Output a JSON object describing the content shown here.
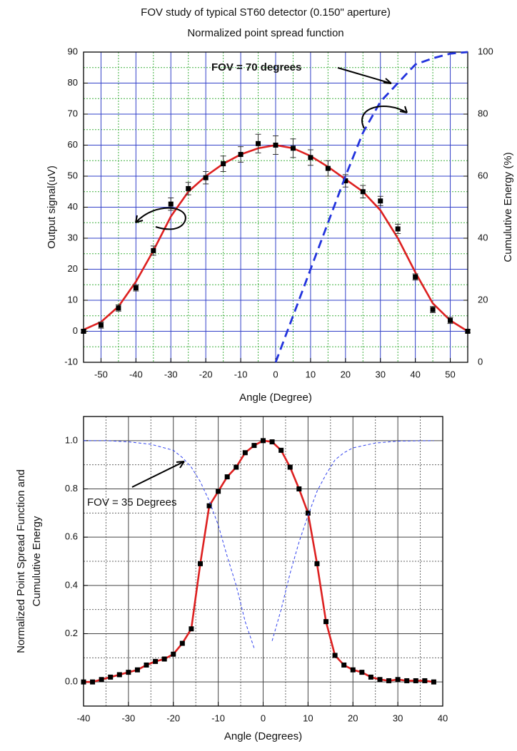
{
  "chart_data": [
    {
      "type": "line",
      "title": "FOV study of typical ST60 detector (0.150\" aperture)",
      "subtitle": "Normalized point spread function",
      "xlabel": "Angle (Degree)",
      "ylabel": [
        "Output signal(uV)"
      ],
      "y2label": "Cumulutive Energy (%)",
      "annotation": "FOV = 70 degrees",
      "xlim": [
        -55,
        55
      ],
      "xticks": [
        -50,
        -40,
        -30,
        -20,
        -10,
        0,
        10,
        20,
        30,
        40,
        50
      ],
      "xminor": [
        -45,
        -35,
        -25,
        -15,
        -5,
        5,
        15,
        25,
        35,
        45
      ],
      "ylim": [
        -10,
        90
      ],
      "yticks": [
        -10,
        0,
        10,
        20,
        30,
        40,
        50,
        60,
        70,
        80,
        90
      ],
      "yminor": [
        -5,
        5,
        15,
        25,
        35,
        45,
        55,
        65,
        75,
        85
      ],
      "y2lim": [
        0,
        100
      ],
      "y2ticks": [
        0,
        20,
        40,
        60,
        80,
        100
      ],
      "grid": true,
      "grid_color": "#3240c8",
      "minor_grid_color": "#40b040",
      "series": [
        {
          "style": "line",
          "color": "#dd2020",
          "x": [
            -55,
            -50,
            -45,
            -40,
            -35,
            -30,
            -25,
            -20,
            -15,
            -10,
            -5,
            0,
            5,
            10,
            15,
            20,
            25,
            30,
            35,
            40,
            45,
            50,
            55
          ],
          "values": [
            0.5,
            3,
            8,
            16,
            26,
            37,
            45,
            50,
            54,
            57,
            59,
            60,
            59,
            56.5,
            53,
            49,
            45,
            39,
            30,
            19,
            9,
            3.5,
            0
          ]
        },
        {
          "style": "markers",
          "color": "#000000",
          "x": [
            -55,
            -50,
            -45,
            -40,
            -35,
            -30,
            -25,
            -20,
            -15,
            -10,
            -5,
            0,
            5,
            10,
            15,
            20,
            25,
            30,
            35,
            40,
            45,
            50,
            55
          ],
          "values": [
            0,
            2,
            7.5,
            14,
            26,
            41,
            46,
            49.5,
            54,
            57,
            60.5,
            60,
            59,
            56,
            52.5,
            48.5,
            45,
            42,
            33,
            17.5,
            7,
            3.5,
            0
          ],
          "errors": [
            0.5,
            1,
            1,
            1,
            1.5,
            2,
            2,
            2,
            2.5,
            2.5,
            3,
            3,
            3,
            2.5,
            2.5,
            2,
            2,
            1.5,
            1.5,
            1,
            1,
            1,
            0.5
          ]
        },
        {
          "style": "dashed",
          "color": "#2233dd",
          "axis": "y2",
          "x": [
            0,
            5,
            10,
            15,
            20,
            25,
            30,
            35,
            40,
            45,
            50,
            55
          ],
          "values": [
            0,
            15,
            30,
            45,
            60,
            74,
            84,
            90,
            96,
            98,
            99.5,
            100
          ]
        }
      ]
    },
    {
      "type": "line",
      "xlabel": "Angle (Degrees)",
      "ylabel": [
        "Normalized Point Spread Function and",
        "Cumulutive Energy"
      ],
      "annotation": "FOV = 35 Degrees",
      "xlim": [
        -40,
        40
      ],
      "xticks": [
        -40,
        -30,
        -20,
        -10,
        0,
        10,
        20,
        30,
        40
      ],
      "xminor": [
        -35,
        -25,
        -15,
        -5,
        5,
        15,
        25,
        35
      ],
      "ylim": [
        -0.1,
        1.1
      ],
      "yticks": [
        {
          "value": 0,
          "label": "0.0"
        },
        0.2,
        0.4,
        0.6,
        0.8,
        {
          "value": 1,
          "label": "1.0"
        }
      ],
      "yminor": [
        0.1,
        0.3,
        0.5,
        0.7,
        0.9
      ],
      "grid": true,
      "grid_color": "#444444",
      "minor_grid_color": "#666666",
      "series": [
        {
          "style": "line",
          "color": "#dd2020",
          "x": [
            -40,
            -38,
            -36,
            -34,
            -32,
            -30,
            -28,
            -26,
            -24,
            -22,
            -20,
            -18,
            -16,
            -14,
            -12,
            -10,
            -8,
            -6,
            -4,
            -2,
            0,
            2,
            4,
            6,
            8,
            10,
            12,
            14,
            16,
            18,
            20,
            22,
            24,
            26,
            28,
            30,
            32,
            34,
            36,
            38
          ],
          "values": [
            0,
            0,
            0.01,
            0.02,
            0.03,
            0.04,
            0.05,
            0.07,
            0.085,
            0.095,
            0.115,
            0.16,
            0.22,
            0.49,
            0.73,
            0.79,
            0.85,
            0.89,
            0.95,
            0.98,
            1,
            0.995,
            0.96,
            0.89,
            0.8,
            0.7,
            0.49,
            0.25,
            0.11,
            0.07,
            0.05,
            0.04,
            0.02,
            0.01,
            0.005,
            0.01,
            0.005,
            0.005,
            0.005,
            0
          ]
        },
        {
          "style": "markers",
          "color": "#000000",
          "x": [
            -40,
            -38,
            -36,
            -34,
            -32,
            -30,
            -28,
            -26,
            -24,
            -22,
            -20,
            -18,
            -16,
            -14,
            -12,
            -10,
            -8,
            -6,
            -4,
            -2,
            0,
            2,
            4,
            6,
            8,
            10,
            12,
            14,
            16,
            18,
            20,
            22,
            24,
            26,
            28,
            30,
            32,
            34,
            36,
            38
          ],
          "values": [
            0,
            0,
            0.01,
            0.02,
            0.03,
            0.04,
            0.05,
            0.07,
            0.085,
            0.095,
            0.115,
            0.16,
            0.22,
            0.49,
            0.73,
            0.79,
            0.85,
            0.89,
            0.95,
            0.98,
            1,
            0.995,
            0.96,
            0.89,
            0.8,
            0.7,
            0.49,
            0.25,
            0.11,
            0.07,
            0.05,
            0.04,
            0.02,
            0.01,
            0.005,
            0.01,
            0.005,
            0.005,
            0.005,
            0
          ]
        },
        {
          "style": "thin-dashed",
          "color": "#3344ee",
          "x": [
            -40,
            -35,
            -30,
            -25,
            -20,
            -18,
            -16,
            -14,
            -12,
            -10,
            -8,
            -6,
            -4,
            -2,
            0,
            2,
            4,
            6,
            8,
            10,
            12,
            14,
            16,
            18,
            20,
            25,
            30,
            38
          ],
          "values": [
            1,
            1,
            0.995,
            0.985,
            0.96,
            0.93,
            0.89,
            0.83,
            0.75,
            0.65,
            0.52,
            0.4,
            0.25,
            0.14,
            null,
            0.17,
            0.3,
            0.45,
            0.58,
            0.69,
            0.79,
            0.86,
            0.92,
            0.95,
            0.97,
            0.99,
            0.998,
            1
          ]
        }
      ]
    }
  ]
}
